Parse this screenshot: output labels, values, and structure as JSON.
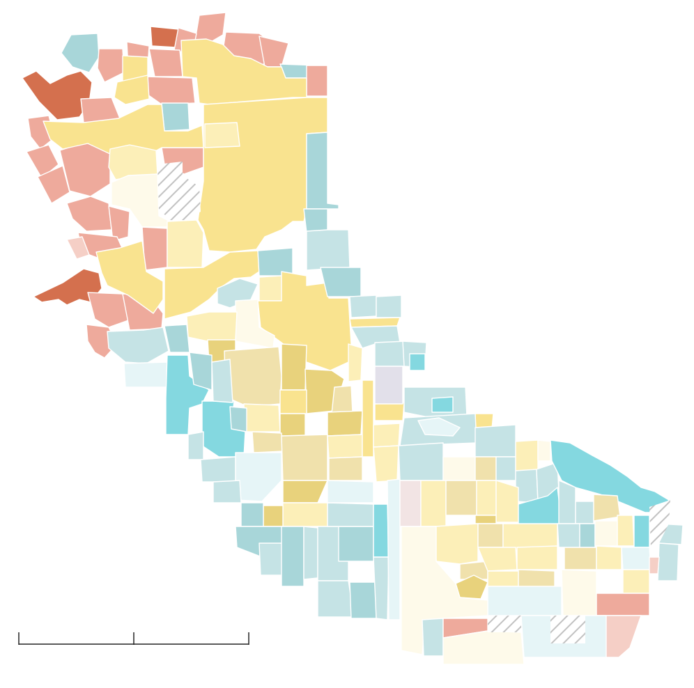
{
  "map": {
    "type": "choropleth",
    "palette": {
      "deep_orange": "#d4704e",
      "salmon": "#eeaa9c",
      "light_salmon": "#f5cfc6",
      "yellow": "#f9e38f",
      "light_yellow": "#fcefb8",
      "pale_yellow": "#fefaea",
      "tan": "#f0e1ac",
      "gold": "#e8d27c",
      "teal_light": "#c5e3e5",
      "teal": "#a8d6d9",
      "cyan": "#84d8e0",
      "pale_cyan": "#e6f5f7",
      "grey_lilac": "#e2e0ea",
      "pink_grey": "#f2e4e4",
      "no_data_hatch": "#c9c9c9"
    },
    "legend": [],
    "scale_bar": {
      "segments": 2,
      "labels": []
    }
  }
}
